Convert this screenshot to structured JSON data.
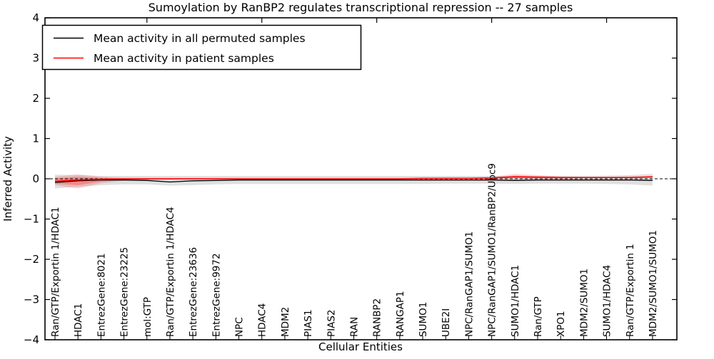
{
  "chart_data": {
    "type": "line",
    "title": "Sumoylation by RanBP2 regulates transcriptional repression -- 27 samples",
    "xlabel": "Cellular Entities",
    "ylabel": "Inferred Activity",
    "ylim": [
      -4,
      4
    ],
    "grid": false,
    "legend_position": "upper left",
    "yticks": [
      {
        "value": 4,
        "label": "4"
      },
      {
        "value": 3,
        "label": "3"
      },
      {
        "value": 2,
        "label": "2"
      },
      {
        "value": 1,
        "label": "1"
      },
      {
        "value": 0,
        "label": "0"
      },
      {
        "value": -1,
        "label": "−1"
      },
      {
        "value": -2,
        "label": "−2"
      },
      {
        "value": -3,
        "label": "−3"
      },
      {
        "value": -4,
        "label": "−4"
      }
    ],
    "x_labels": [
      "Ran/GTP/Exportin 1/HDAC1",
      "HDAC1",
      "EntrezGene:8021",
      "EntrezGene:23225",
      "mol:GTP",
      "Ran/GTP/Exportin 1/HDAC4",
      "EntrezGene:23636",
      "EntrezGene:9972",
      "NPC",
      "HDAC4",
      "MDM2",
      "PIAS1",
      "PIAS2",
      "RAN",
      "RANBP2",
      "RANGAP1",
      "SUMO1",
      "UBE2I",
      "NPC/RanGAP1/SUMO1",
      "NPC/RanGAP1/SUMO1/RanBP2/Ubc9",
      "SUMO1/HDAC1",
      "Ran/GTP",
      "XPO1",
      "MDM2/SUMO1",
      "SUMO1/HDAC4",
      "Ran/GTP/Exportin 1",
      "MDM2/SUMO1/SUMO1"
    ],
    "zero_line": {
      "y": 0,
      "style": "dashed",
      "color": "#000000"
    },
    "series": [
      {
        "name": "Mean activity in all permuted samples",
        "color": "#000000",
        "values": [
          -0.09,
          -0.05,
          -0.03,
          -0.03,
          -0.04,
          -0.08,
          -0.05,
          -0.04,
          -0.03,
          -0.03,
          -0.03,
          -0.03,
          -0.03,
          -0.03,
          -0.03,
          -0.03,
          -0.03,
          -0.03,
          -0.03,
          -0.03,
          -0.04,
          -0.03,
          -0.03,
          -0.03,
          -0.03,
          -0.03,
          -0.04
        ]
      },
      {
        "name": "Mean activity in patient samples",
        "color": "#ff0000",
        "values": [
          -0.06,
          -0.03,
          -0.01,
          0,
          0,
          0,
          0,
          0,
          0,
          0,
          0,
          0,
          0,
          0,
          0,
          0,
          0.01,
          0.01,
          0.01,
          0.02,
          0.05,
          0.04,
          0.03,
          0.03,
          0.03,
          0.03,
          0.05
        ]
      }
    ],
    "bands": [
      {
        "name": "permuted-activity-range",
        "color": "rgba(0,0,0,0.12)",
        "upper": [
          0.1,
          0.09,
          0.07,
          0.07,
          0.07,
          0.07,
          0.07,
          0.07,
          0.07,
          0.07,
          0.07,
          0.07,
          0.07,
          0.07,
          0.07,
          0.07,
          0.07,
          0.07,
          0.07,
          0.07,
          0.07,
          0.07,
          0.07,
          0.07,
          0.08,
          0.09,
          0.12
        ],
        "lower": [
          -0.24,
          -0.2,
          -0.16,
          -0.14,
          -0.14,
          -0.17,
          -0.16,
          -0.14,
          -0.13,
          -0.13,
          -0.13,
          -0.13,
          -0.13,
          -0.13,
          -0.13,
          -0.13,
          -0.13,
          -0.12,
          -0.12,
          -0.12,
          -0.13,
          -0.12,
          -0.12,
          -0.12,
          -0.13,
          -0.14,
          -0.17
        ]
      },
      {
        "name": "patient-activity-range-outer",
        "color": "rgba(255,50,50,0.22)",
        "upper": [
          0.05,
          0.11,
          0.05,
          0.02,
          0.02,
          0.02,
          0.02,
          0.02,
          0.02,
          0.02,
          0.02,
          0.02,
          0.02,
          0.02,
          0.02,
          0.02,
          0.02,
          0.03,
          0.03,
          0.05,
          0.12,
          0.09,
          0.06,
          0.05,
          0.05,
          0.06,
          0.07
        ],
        "lower": [
          -0.16,
          -0.24,
          -0.11,
          -0.05,
          -0.03,
          -0.02,
          -0.02,
          -0.02,
          -0.02,
          -0.02,
          -0.02,
          -0.02,
          -0.02,
          -0.02,
          -0.02,
          -0.02,
          -0.01,
          -0.01,
          0.0,
          0.0,
          0.01,
          0.0,
          0.0,
          0.01,
          0.01,
          0.01,
          0.02
        ]
      },
      {
        "name": "patient-activity-range-inner",
        "color": "rgba(255,30,30,0.30)",
        "upper": [
          0.01,
          0.05,
          0.02,
          0.01,
          0.01,
          0.01,
          0.01,
          0.01,
          0.01,
          0.01,
          0.01,
          0.01,
          0.01,
          0.01,
          0.01,
          0.01,
          0.01,
          0.02,
          0.02,
          0.03,
          0.08,
          0.06,
          0.04,
          0.04,
          0.04,
          0.04,
          0.06
        ],
        "lower": [
          -0.12,
          -0.16,
          -0.07,
          -0.03,
          -0.02,
          -0.01,
          -0.01,
          -0.01,
          -0.01,
          -0.01,
          -0.01,
          -0.01,
          -0.01,
          -0.01,
          -0.01,
          -0.01,
          0.0,
          0.0,
          0.0,
          0.01,
          0.02,
          0.01,
          0.01,
          0.02,
          0.02,
          0.02,
          0.03
        ]
      }
    ]
  }
}
